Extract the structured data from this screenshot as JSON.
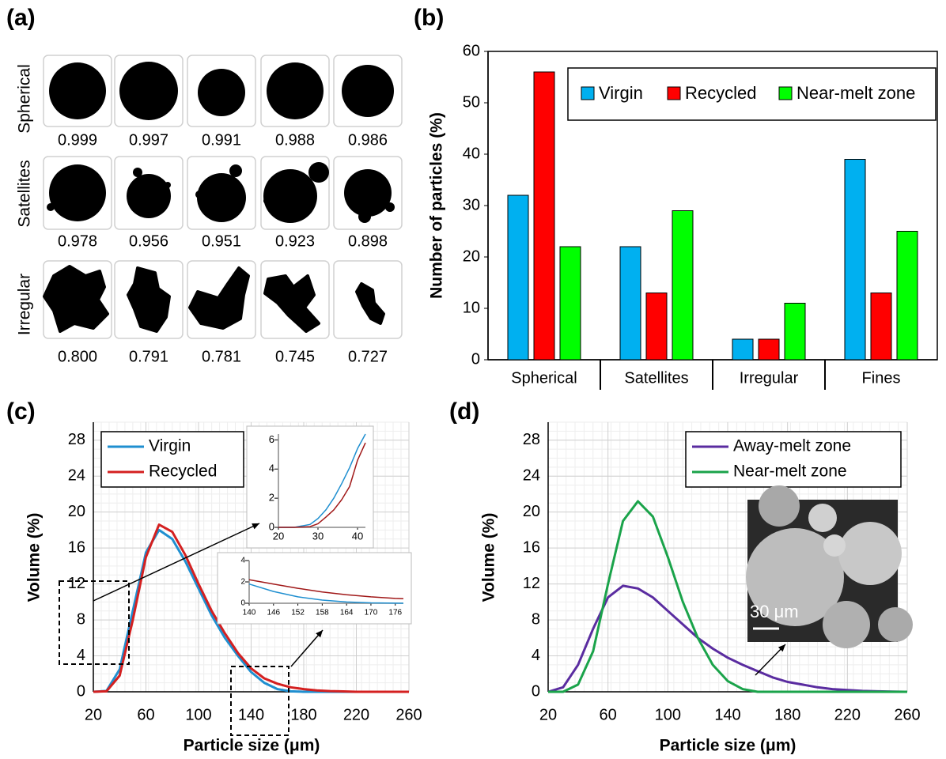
{
  "panel_a": {
    "label": "(a)",
    "rows": [
      {
        "name": "Spherical",
        "values": [
          "0.999",
          "0.997",
          "0.991",
          "0.988",
          "0.986"
        ]
      },
      {
        "name": "Satellites",
        "values": [
          "0.978",
          "0.956",
          "0.951",
          "0.923",
          "0.898"
        ]
      },
      {
        "name": "Irregular",
        "values": [
          "0.800",
          "0.791",
          "0.781",
          "0.745",
          "0.727"
        ]
      }
    ]
  },
  "chart_data": [
    {
      "type": "bar",
      "label": "(b)",
      "y_label": "Number of particles (%)",
      "categories": [
        "Spherical",
        "Satellites",
        "Irregular",
        "Fines"
      ],
      "series": [
        {
          "name": "Virgin",
          "color": "#00b0f0",
          "values": [
            32,
            22,
            4,
            39
          ]
        },
        {
          "name": "Recycled",
          "color": "#ff0000",
          "values": [
            56,
            13,
            4,
            13
          ]
        },
        {
          "name": "Near-melt zone",
          "color": "#00ff00",
          "values": [
            22,
            29,
            11,
            25
          ]
        }
      ],
      "ylim": [
        0,
        60
      ],
      "yticks": [
        0,
        10,
        20,
        30,
        40,
        50,
        60
      ],
      "legend": "upper right",
      "grid": false
    },
    {
      "type": "line",
      "label": "(c)",
      "x_label": "Particle size (μm)",
      "y_label": "Volume (%)",
      "x": [
        20,
        30,
        40,
        50,
        60,
        70,
        80,
        90,
        100,
        110,
        120,
        130,
        140,
        150,
        160,
        170,
        180,
        190,
        200,
        210,
        220,
        230,
        240,
        250,
        260
      ],
      "series": [
        {
          "name": "Virgin",
          "color": "#1f8fd0",
          "values": [
            0,
            0.1,
            2.5,
            9,
            15.5,
            18,
            17,
            14.5,
            11.5,
            8.5,
            6,
            4,
            2.2,
            1,
            0.3,
            0.05,
            0,
            0,
            0,
            0,
            0,
            0,
            0,
            0,
            0
          ]
        },
        {
          "name": "Recycled",
          "color": "#d42020",
          "values": [
            0,
            0.05,
            1.8,
            8,
            15,
            18.6,
            17.8,
            15.2,
            12,
            9,
            6.5,
            4.3,
            2.6,
            1.5,
            0.9,
            0.5,
            0.3,
            0.15,
            0.08,
            0.04,
            0,
            0,
            0,
            0,
            0
          ]
        }
      ],
      "xlim": [
        20,
        260
      ],
      "xticks": [
        20,
        60,
        100,
        140,
        180,
        220,
        260
      ],
      "ylim": [
        0,
        30
      ],
      "yticks": [
        0,
        4,
        8,
        12,
        16,
        20,
        24,
        28
      ],
      "legend": "upper left",
      "grid": true
    },
    {
      "type": "line",
      "label": "(d)",
      "x_label": "Particle size (μm)",
      "y_label": "Volume (%)",
      "annotation": "30 μm",
      "x": [
        20,
        30,
        40,
        50,
        60,
        70,
        80,
        90,
        100,
        110,
        120,
        130,
        140,
        150,
        160,
        170,
        180,
        190,
        200,
        210,
        220,
        230,
        240,
        250,
        260
      ],
      "series": [
        {
          "name": "Away-melt zone",
          "color": "#5a2ca0",
          "values": [
            0,
            0.5,
            3,
            7,
            10.5,
            11.8,
            11.5,
            10.5,
            9,
            7.5,
            6,
            4.8,
            3.8,
            3,
            2.3,
            1.6,
            1.1,
            0.8,
            0.5,
            0.3,
            0.2,
            0.1,
            0.05,
            0.02,
            0
          ]
        },
        {
          "name": "Near-melt zone",
          "color": "#1aa34a",
          "values": [
            0,
            0,
            0.8,
            4.5,
            12,
            19,
            21.2,
            19.5,
            15,
            10,
            6,
            3,
            1.2,
            0.3,
            0,
            0,
            0,
            0,
            0,
            0,
            0,
            0,
            0,
            0,
            0
          ]
        }
      ],
      "xlim": [
        20,
        260
      ],
      "xticks": [
        20,
        60,
        100,
        140,
        180,
        220,
        260
      ],
      "ylim": [
        0,
        30
      ],
      "yticks": [
        0,
        4,
        8,
        12,
        16,
        20,
        24,
        28
      ],
      "legend": "upper right",
      "grid": true
    },
    {
      "type": "line",
      "x": [
        20,
        24,
        28,
        30,
        32,
        34,
        36,
        38,
        40,
        42
      ],
      "series": [
        {
          "color": "#1f8fd0",
          "values": [
            0,
            0,
            0.2,
            0.6,
            1.2,
            2.0,
            3.0,
            4.1,
            5.4,
            6.4
          ]
        },
        {
          "color": "#a01818",
          "values": [
            0,
            0,
            0.05,
            0.25,
            0.7,
            1.2,
            1.9,
            2.8,
            4.6,
            5.8
          ]
        }
      ],
      "xlim": [
        20,
        42
      ],
      "xticks": [
        20,
        30,
        40
      ],
      "ylim": [
        0,
        6.4
      ],
      "yticks": [
        0,
        2,
        4,
        6
      ],
      "grid": false
    },
    {
      "type": "line",
      "x": [
        140,
        146,
        152,
        158,
        164,
        170,
        176,
        178
      ],
      "series": [
        {
          "color": "#1f8fd0",
          "values": [
            1.8,
            1.1,
            0.6,
            0.3,
            0.12,
            0.04,
            0.01,
            0
          ]
        },
        {
          "color": "#a01818",
          "values": [
            2.2,
            1.8,
            1.4,
            1.05,
            0.8,
            0.6,
            0.45,
            0.42
          ]
        }
      ],
      "xlim": [
        140,
        178
      ],
      "xticks": [
        140,
        146,
        152,
        158,
        164,
        170,
        176
      ],
      "ylim": [
        0,
        4
      ],
      "yticks": [
        0,
        2,
        4
      ],
      "grid": false
    }
  ]
}
